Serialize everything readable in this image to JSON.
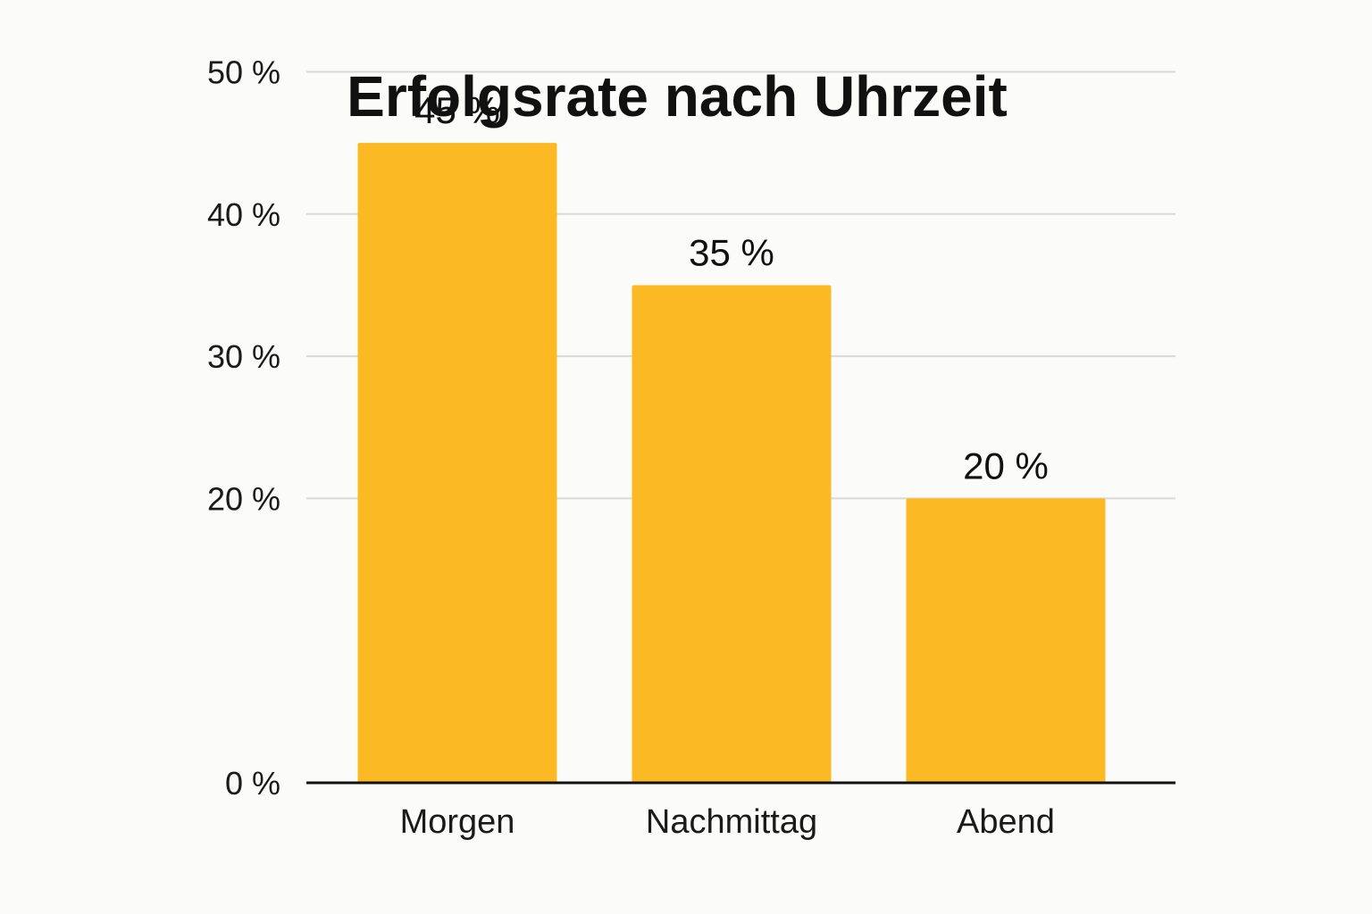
{
  "chart_data": {
    "type": "bar",
    "title": "Erfolgsrate nach Uhrzeit",
    "xlabel": "",
    "ylabel": "",
    "categories": [
      "Morgen",
      "Nachmittag",
      "Abend"
    ],
    "values": [
      45,
      35,
      20
    ],
    "value_labels": [
      "45 %",
      "35 %",
      "20 %"
    ],
    "yticks": [
      {
        "value": 0,
        "label": "0 %"
      },
      {
        "value": 20,
        "label": "20 %"
      },
      {
        "value": 30,
        "label": "30 %"
      },
      {
        "value": 40,
        "label": "40 %"
      },
      {
        "value": 50,
        "label": "50 %"
      }
    ],
    "ylim": [
      0,
      50
    ],
    "grid": true,
    "legend": "none",
    "colors": {
      "bar": "#fbb923",
      "background": "#fbfbf9"
    }
  }
}
